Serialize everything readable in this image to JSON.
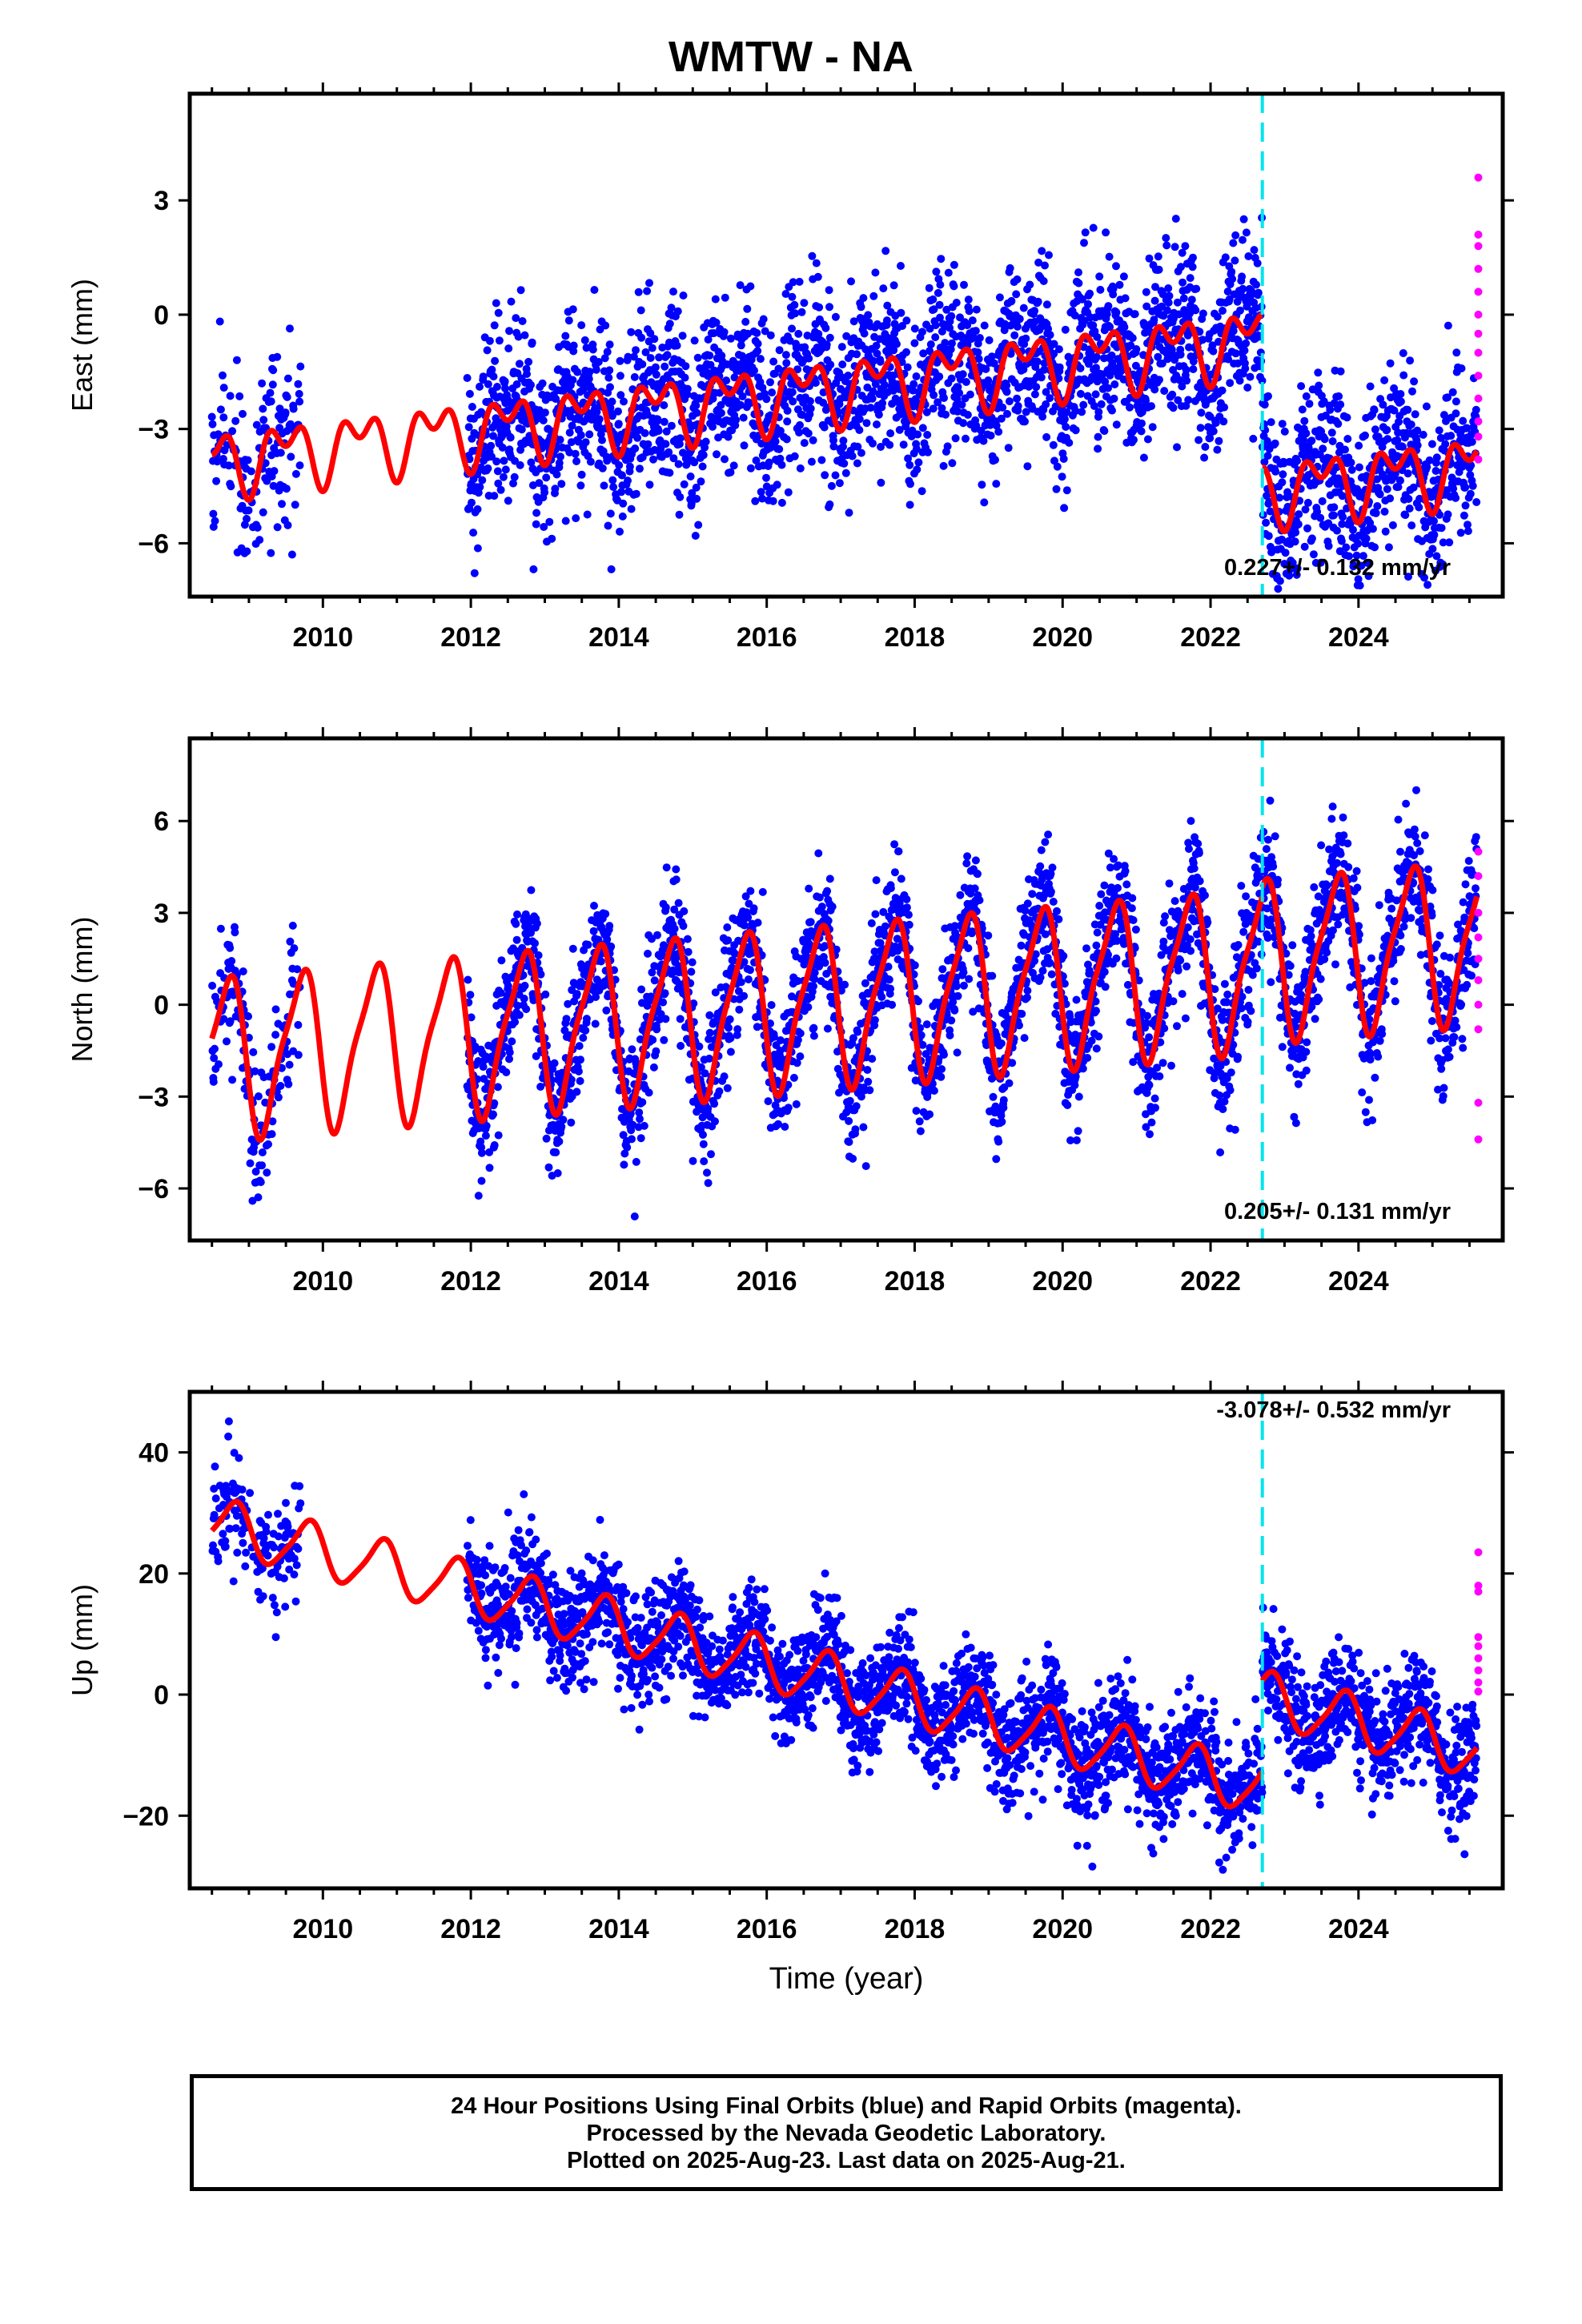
{
  "title": "WMTW - NA",
  "colors": {
    "final_orbits": "#0000ff",
    "rapid_orbits": "#ff00ff",
    "model": "#ff0000",
    "equipment_change": "#00e5ee"
  },
  "footer": {
    "line1": "24 Hour Positions Using Final Orbits (blue) and Rapid Orbits (magenta).",
    "line2": "Processed by the Nevada Geodetic Laboratory.",
    "line3": "Plotted on 2025-Aug-23. Last data on 2025-Aug-21."
  },
  "chart_data": [
    {
      "type": "scatter",
      "ylabel": "East (mm)",
      "xlim": [
        2008.2,
        2025.95
      ],
      "ylim": [
        -7.4,
        5.8
      ],
      "xticks": [
        2010,
        2012,
        2014,
        2016,
        2018,
        2020,
        2022,
        2024
      ],
      "yticks": [
        -6,
        -3,
        0,
        3
      ],
      "equipment_change_year": 2022.7,
      "rate": "0.227+/- 0.132 mm/yr",
      "data_gap": [
        2009.7,
        2011.95
      ],
      "model": {
        "segments": [
          {
            "start": 2008.5,
            "end": 2022.7,
            "offset": -1.9,
            "trend": 0.227,
            "amp_annual": 0.65,
            "amp_semi": 0.5
          },
          {
            "start": 2022.7,
            "end": 2025.6,
            "offset": -5.9,
            "trend": 0.227,
            "amp_annual": 0.65,
            "amp_semi": 0.5
          }
        ],
        "epoch": 2017.0,
        "phase_annual": 0.25
      },
      "series_final": {
        "name": "Final Orbits",
        "scatter_mm": 1.1,
        "clip": [
          -7.2,
          5.6
        ]
      },
      "series_rapid": {
        "name": "Rapid Orbits",
        "year": 2025.62,
        "values": [
          3.6,
          2.1,
          1.8,
          1.2,
          0.6,
          0.0,
          -0.5,
          -1.0,
          -1.6,
          -2.2,
          -2.8,
          -3.2,
          -3.8
        ]
      }
    },
    {
      "type": "scatter",
      "ylabel": "North (mm)",
      "xlim": [
        2008.2,
        2025.95
      ],
      "ylim": [
        -7.7,
        8.7
      ],
      "xticks": [
        2010,
        2012,
        2014,
        2016,
        2018,
        2020,
        2022,
        2024
      ],
      "yticks": [
        -6,
        -3,
        0,
        3,
        6
      ],
      "equipment_change_year": 2022.7,
      "rate": "0.205+/- 0.131 mm/yr",
      "data_gap": [
        2009.7,
        2011.95
      ],
      "model": {
        "segments": [
          {
            "start": 2008.5,
            "end": 2022.7,
            "offset": 0.05,
            "trend": 0.205,
            "amp_annual": 2.5,
            "amp_semi": 0.6
          },
          {
            "start": 2022.7,
            "end": 2025.6,
            "offset": 0.35,
            "trend": 0.205,
            "amp_annual": 2.5,
            "amp_semi": 0.6
          }
        ],
        "epoch": 2017.0,
        "phase_annual": 0.45
      },
      "series_final": {
        "name": "Final Orbits",
        "scatter_mm": 1.1,
        "clip": [
          -7.3,
          8.3
        ]
      },
      "series_rapid": {
        "name": "Rapid Orbits",
        "year": 2025.62,
        "values": [
          5.0,
          4.2,
          3.0,
          2.2,
          1.5,
          0.8,
          0.0,
          -0.8,
          -3.2,
          -4.4
        ]
      }
    },
    {
      "type": "scatter",
      "ylabel": "Up (mm)",
      "xlabel": "Time (year)",
      "xlim": [
        2008.2,
        2025.95
      ],
      "ylim": [
        -32,
        50
      ],
      "xticks": [
        2010,
        2012,
        2014,
        2016,
        2018,
        2020,
        2022,
        2024
      ],
      "yticks": [
        -20,
        0,
        20,
        40
      ],
      "equipment_change_year": 2022.7,
      "rate": "-3.078+/- 0.532 mm/yr",
      "data_gap": [
        2009.7,
        2011.95
      ],
      "model": {
        "segments": [
          {
            "start": 2008.5,
            "end": 2022.7,
            "offset": 2.0,
            "trend": -3.078,
            "amp_annual": 4.3,
            "amp_semi": 0.8
          },
          {
            "start": 2022.7,
            "end": 2025.6,
            "offset": 17.0,
            "trend": -3.078,
            "amp_annual": 4.3,
            "amp_semi": 0.8
          }
        ],
        "epoch": 2017.0,
        "phase_annual": 0.55
      },
      "series_final": {
        "name": "Final Orbits",
        "scatter_mm": 4.6,
        "clip": [
          -30,
          49
        ]
      },
      "series_rapid": {
        "name": "Rapid Orbits",
        "year": 2025.62,
        "values": [
          23.5,
          18.0,
          17.0,
          9.5,
          8.0,
          6.0,
          4.0,
          2.0,
          0.5
        ]
      }
    }
  ]
}
